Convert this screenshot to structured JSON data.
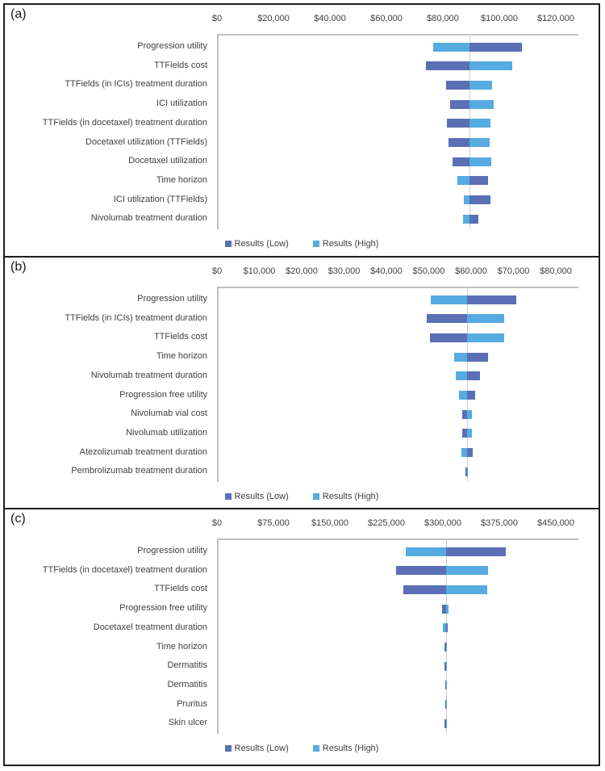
{
  "figure": {
    "legend": {
      "low_label": "Results (Low)",
      "high_label": "Results (High)"
    },
    "colors": {
      "low": "#5b6fb5",
      "high": "#56abe0",
      "axis_line": "#bfbfbf",
      "baseline_line": "#cdcdcd",
      "text": "#3f3f3f",
      "border": "#1f1f1f"
    }
  },
  "chart_data": [
    {
      "type": "bar",
      "panel_label": "(a)",
      "orientation": "horizontal-tornado",
      "grid": false,
      "legend_position": "bottom",
      "axis": {
        "min": 0,
        "max": 120000,
        "tick_step": 20000,
        "tick_labels": [
          "$0",
          "$20,000",
          "$40,000",
          "$60,000",
          "$80,000",
          "$100,000",
          "$120,000"
        ]
      },
      "baseline_value": 89400,
      "categories": [
        "Progression utility",
        "TTFields cost",
        "TTFields (in ICIs) treatment duration",
        "ICI utilization",
        "TTFields (in docetaxel) treatment duration",
        "Docetaxel utilization (TTFields)",
        "Docetaxel utilization",
        "Time horizon",
        "ICI utilization (TTFields)",
        "Nivolumab treatment duration"
      ],
      "series": [
        {
          "name": "Results (Low)",
          "values": [
            108000,
            74000,
            81000,
            82500,
            81500,
            82000,
            83500,
            96000,
            97000,
            92500
          ]
        },
        {
          "name": "Results (High)",
          "values": [
            76500,
            104500,
            97500,
            98000,
            97000,
            96500,
            97100,
            85000,
            87500,
            87000
          ]
        }
      ]
    },
    {
      "type": "bar",
      "panel_label": "(b)",
      "orientation": "horizontal-tornado",
      "grid": false,
      "legend_position": "bottom",
      "axis": {
        "min": 0,
        "max": 80000,
        "tick_step": 10000,
        "tick_labels": [
          "$0",
          "$10,000",
          "$20,000",
          "$30,000",
          "$40,000",
          "$50,000",
          "$60,000",
          "$70,000",
          "$80,000"
        ]
      },
      "baseline_value": 59000,
      "categories": [
        "Progression utility",
        "TTFields (in ICIs) treatment duration",
        "TTFields cost",
        "Time horizon",
        "Nivolumab treatment duration",
        "Progression free utility",
        "Nivolumab vial cost",
        "Nivolumab utilization",
        "Atezolizumab treatment duration",
        "Pembrolizumab treatment duration"
      ],
      "series": [
        {
          "name": "Results (Low)",
          "values": [
            70700,
            49500,
            50200,
            64000,
            62000,
            60900,
            57800,
            57900,
            60400,
            58600
          ]
        },
        {
          "name": "Results (High)",
          "values": [
            50500,
            67900,
            67800,
            55900,
            56400,
            57100,
            60100,
            60100,
            57700,
            59300
          ]
        }
      ]
    },
    {
      "type": "bar",
      "panel_label": "(c)",
      "orientation": "horizontal-tornado",
      "grid": false,
      "legend_position": "bottom",
      "axis": {
        "min": 0,
        "max": 450000,
        "tick_step": 75000,
        "tick_labels": [
          "$0",
          "$75,000",
          "$150,000",
          "$225,000",
          "$300,000",
          "$375,000",
          "$450,000"
        ]
      },
      "baseline_value": 304000,
      "categories": [
        "Progression utility",
        "TTFields (in docetaxel) treatment duration",
        "TTFields cost",
        "Progression free utility",
        "Docetaxel treatment duration",
        "Time horizon",
        "Dermatitis",
        "Dermatitis",
        "Pruritus",
        "Skin ulcer"
      ],
      "series": [
        {
          "name": "Results (Low)",
          "values": [
            384000,
            237500,
            247500,
            299000,
            306800,
            302300,
            302500,
            302700,
            302700,
            302500
          ]
        },
        {
          "name": "Results (High)",
          "values": [
            251000,
            360000,
            359500,
            307300,
            299800,
            305600,
            305400,
            305200,
            305200,
            305400
          ]
        }
      ]
    }
  ]
}
